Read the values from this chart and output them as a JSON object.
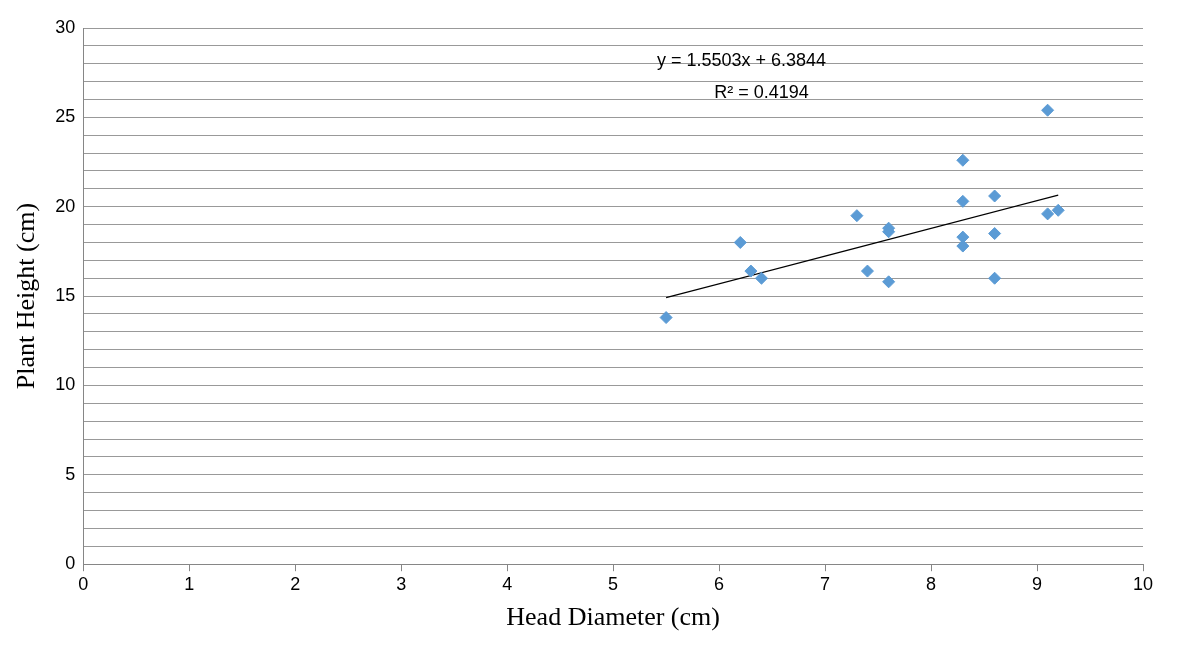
{
  "chart_data": {
    "type": "scatter",
    "xlabel": "Head Diameter (cm)",
    "ylabel": "Plant Height (cm)",
    "annotations": [
      "y = 1.5503x + 6.3844",
      "R² = 0.4194"
    ],
    "xlim": [
      0,
      10
    ],
    "xticks": [
      0,
      1,
      2,
      3,
      4,
      5,
      6,
      7,
      8,
      9,
      10
    ],
    "ylim": [
      0,
      30
    ],
    "yticks": [
      0,
      {
        "value": 1,
        "label": null
      },
      {
        "value": 2,
        "label": null
      },
      {
        "value": 3,
        "label": null
      },
      {
        "value": 4,
        "label": null
      },
      5,
      {
        "value": 6,
        "label": null
      },
      {
        "value": 7,
        "label": null
      },
      {
        "value": 8,
        "label": null
      },
      {
        "value": 9,
        "label": null
      },
      10,
      {
        "value": 11,
        "label": null
      },
      {
        "value": 12,
        "label": null
      },
      {
        "value": 13,
        "label": null
      },
      {
        "value": 14,
        "label": null
      },
      15,
      {
        "value": 16,
        "label": null
      },
      {
        "value": 17,
        "label": null
      },
      {
        "value": 18,
        "label": null
      },
      {
        "value": 19,
        "label": null
      },
      20,
      {
        "value": 21,
        "label": null
      },
      {
        "value": 22,
        "label": null
      },
      {
        "value": 23,
        "label": null
      },
      {
        "value": 24,
        "label": null
      },
      25,
      {
        "value": 26,
        "label": null
      },
      {
        "value": 27,
        "label": null
      },
      {
        "value": 28,
        "label": null
      },
      {
        "value": 29,
        "label": null
      },
      30
    ],
    "grid": "y",
    "legend": false,
    "series": [
      {
        "type": "scatter",
        "marker": "diamond",
        "color": "#5b9bd5",
        "x": [
          5.5,
          6.2,
          6.3,
          6.4,
          7.3,
          7.4,
          7.6,
          7.6,
          7.6,
          8.3,
          8.3,
          8.3,
          8.3,
          8.6,
          8.6,
          8.6,
          9.1,
          9.1,
          9.2
        ],
        "values": [
          13.8,
          18.0,
          16.4,
          16.0,
          19.5,
          16.4,
          18.8,
          18.6,
          15.8,
          22.6,
          20.3,
          18.3,
          17.8,
          20.6,
          18.5,
          16.0,
          25.4,
          19.6,
          19.8
        ]
      },
      {
        "type": "line",
        "marker": "none",
        "line_style": "solid",
        "color": "#000000",
        "x": [
          5.5,
          9.2
        ],
        "values": [
          14.91,
          20.65
        ]
      }
    ]
  }
}
